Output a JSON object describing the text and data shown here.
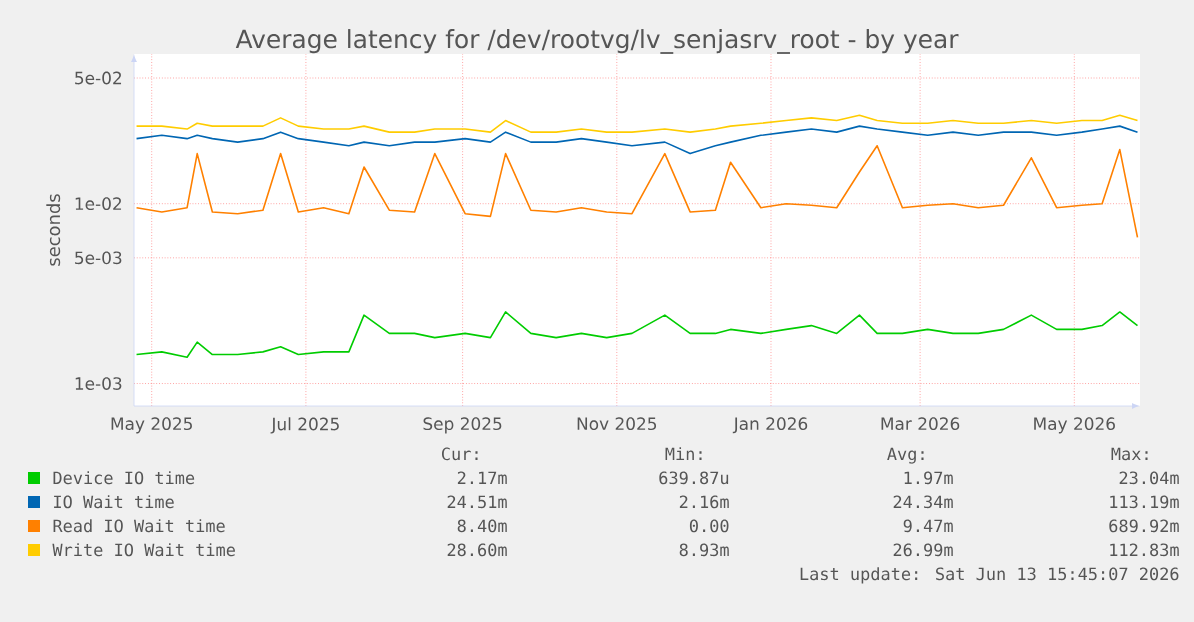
{
  "chart_data": {
    "type": "line",
    "title": "Average latency for /dev/rootvg/lv_senjasrv_root - by year",
    "ylabel": "seconds",
    "log": "y",
    "grid": true,
    "legend": "bottom",
    "marker": "none",
    "line_style": "solid",
    "x": [
      "2025-04-25",
      "2025-05-05",
      "2025-05-15",
      "2025-05-19",
      "2025-05-25",
      "2025-06-04",
      "2025-06-14",
      "2025-06-21",
      "2025-06-28",
      "2025-07-08",
      "2025-07-18",
      "2025-07-24",
      "2025-08-03",
      "2025-08-13",
      "2025-08-21",
      "2025-09-02",
      "2025-09-12",
      "2025-09-18",
      "2025-09-28",
      "2025-10-08",
      "2025-10-18",
      "2025-10-28",
      "2025-11-07",
      "2025-11-20",
      "2025-11-30",
      "2025-12-10",
      "2025-12-16",
      "2025-12-28",
      "2026-01-07",
      "2026-01-17",
      "2026-01-27",
      "2026-02-05",
      "2026-02-12",
      "2026-02-22",
      "2026-03-04",
      "2026-03-14",
      "2026-03-24",
      "2026-04-03",
      "2026-04-14",
      "2026-04-24",
      "2026-05-04",
      "2026-05-12",
      "2026-05-19",
      "2026-05-26"
    ],
    "xlim": [
      "2025-04-24",
      "2026-05-27"
    ],
    "xticks": [
      {
        "value": "2025-05-01",
        "label": "May 2025"
      },
      {
        "value": "2025-07-01",
        "label": "Jul 2025"
      },
      {
        "value": "2025-09-01",
        "label": "Sep 2025"
      },
      {
        "value": "2025-11-01",
        "label": "Nov 2025"
      },
      {
        "value": "2026-01-01",
        "label": "Jan 2026"
      },
      {
        "value": "2026-03-01",
        "label": "Mar 2026"
      },
      {
        "value": "2026-05-01",
        "label": "May 2026"
      }
    ],
    "ylim": [
      0.00075,
      0.068
    ],
    "yticks": [
      {
        "value": 0.001,
        "label": "1e-03"
      },
      {
        "value": 0.005,
        "label": "5e-03"
      },
      {
        "value": 0.01,
        "label": "1e-02"
      },
      {
        "value": 0.05,
        "label": "5e-02"
      }
    ],
    "series": [
      {
        "name": "Device IO time",
        "color": "#00cc00",
        "values": [
          0.00145,
          0.0015,
          0.0014,
          0.0017,
          0.00145,
          0.00145,
          0.0015,
          0.0016,
          0.00145,
          0.0015,
          0.0015,
          0.0024,
          0.0019,
          0.0019,
          0.0018,
          0.0019,
          0.0018,
          0.0025,
          0.0019,
          0.0018,
          0.0019,
          0.0018,
          0.0019,
          0.0024,
          0.0019,
          0.0019,
          0.002,
          0.0019,
          0.002,
          0.0021,
          0.0019,
          0.0024,
          0.0019,
          0.0019,
          0.002,
          0.0019,
          0.0019,
          0.002,
          0.0024,
          0.002,
          0.002,
          0.0021,
          0.0025,
          0.0021
        ]
      },
      {
        "name": "IO Wait time",
        "color": "#0066b3",
        "values": [
          0.023,
          0.024,
          0.023,
          0.024,
          0.023,
          0.022,
          0.023,
          0.025,
          0.023,
          0.022,
          0.021,
          0.022,
          0.021,
          0.022,
          0.022,
          0.023,
          0.022,
          0.025,
          0.022,
          0.022,
          0.023,
          0.022,
          0.021,
          0.022,
          0.019,
          0.021,
          0.022,
          0.024,
          0.025,
          0.026,
          0.025,
          0.027,
          0.026,
          0.025,
          0.024,
          0.025,
          0.024,
          0.025,
          0.025,
          0.024,
          0.025,
          0.026,
          0.027,
          0.025
        ]
      },
      {
        "name": "Read IO Wait time",
        "color": "#ff8000",
        "values": [
          0.0095,
          0.009,
          0.0095,
          0.019,
          0.009,
          0.0088,
          0.0092,
          0.019,
          0.009,
          0.0095,
          0.0088,
          0.016,
          0.0092,
          0.009,
          0.019,
          0.0088,
          0.0085,
          0.019,
          0.0092,
          0.009,
          0.0095,
          0.009,
          0.0088,
          0.019,
          0.009,
          0.0092,
          0.017,
          0.0095,
          0.01,
          0.0098,
          0.0095,
          0.015,
          0.021,
          0.0095,
          0.0098,
          0.01,
          0.0095,
          0.0098,
          0.018,
          0.0095,
          0.0098,
          0.01,
          0.02,
          0.0065
        ]
      },
      {
        "name": "Write IO Wait time",
        "color": "#ffcc00",
        "values": [
          0.027,
          0.027,
          0.026,
          0.028,
          0.027,
          0.027,
          0.027,
          0.03,
          0.027,
          0.026,
          0.026,
          0.027,
          0.025,
          0.025,
          0.026,
          0.026,
          0.025,
          0.029,
          0.025,
          0.025,
          0.026,
          0.025,
          0.025,
          0.026,
          0.025,
          0.026,
          0.027,
          0.028,
          0.029,
          0.03,
          0.029,
          0.031,
          0.029,
          0.028,
          0.028,
          0.029,
          0.028,
          0.028,
          0.029,
          0.028,
          0.029,
          0.029,
          0.031,
          0.029
        ]
      }
    ],
    "annotations": [
      "Cur:",
      "Min:",
      "Avg:",
      "Max:",
      "2.17m",
      "639.87u",
      "1.97m",
      "23.04m",
      "24.51m",
      "2.16m",
      "24.34m",
      "113.19m",
      "8.40m",
      "0.00",
      "9.47m",
      "689.92m",
      "28.60m",
      "8.93m",
      "26.99m",
      "112.83m",
      "Last update: Sat Jun 13 15:45:07 2026"
    ]
  }
}
